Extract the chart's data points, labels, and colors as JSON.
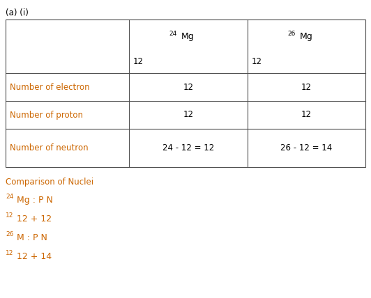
{
  "title": "(a) (i)",
  "title_color": "#000000",
  "title_fontsize": 8.5,
  "bg_color": "#ffffff",
  "table": {
    "row_label_color": "#cc6600",
    "cell_text_color": "#000000",
    "header_text_color": "#000000",
    "border_color": "#505050",
    "rows": [
      [
        "Number of electron",
        "12",
        "12"
      ],
      [
        "Number of proton",
        "12",
        "12"
      ],
      [
        "Number of neutron",
        "24 - 12 = 12",
        "26 - 12 = 14"
      ]
    ]
  },
  "comparison_title": "Comparison of Nuclei",
  "comparison_color": "#cc6600",
  "comparison_lines": [
    {
      "superscript": "24",
      "main": "Mg : P N"
    },
    {
      "superscript": "12",
      "main": "12 + 12"
    },
    {
      "superscript": "26",
      "main": "M : P N"
    },
    {
      "superscript": "12",
      "main": "12 + 14"
    }
  ]
}
